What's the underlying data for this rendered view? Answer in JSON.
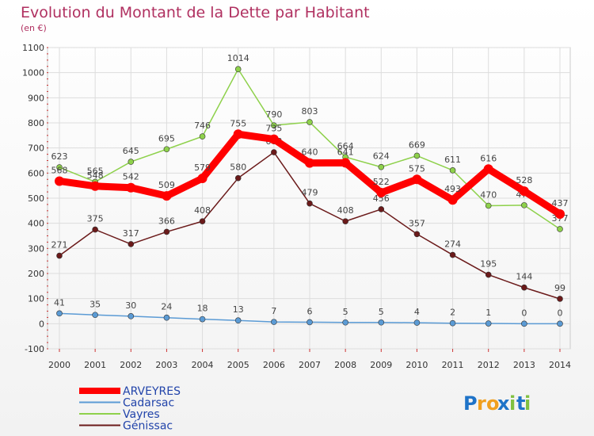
{
  "chart_data": {
    "type": "line",
    "title": "Evolution du Montant de la Dette par Habitant",
    "subtitle": "(en €)",
    "x": [
      "2000",
      "2001",
      "2002",
      "2003",
      "2004",
      "2005",
      "2006",
      "2007",
      "2008",
      "2009",
      "2010",
      "2011",
      "2012",
      "2013",
      "2014"
    ],
    "ylim": [
      -100,
      1100
    ],
    "yticks": [
      -100,
      0,
      100,
      200,
      300,
      400,
      500,
      600,
      700,
      800,
      900,
      1000,
      1100
    ],
    "grid": true,
    "legend": "bottom-left",
    "series": [
      {
        "name": "ARVEYRES",
        "color": "#ff0000",
        "values": [
          568,
          548,
          542,
          509,
          579,
          755,
          735,
          640,
          641,
          522,
          575,
          493,
          616,
          528,
          437
        ]
      },
      {
        "name": "Cadarsac",
        "color": "#5b9bd5",
        "values": [
          41,
          35,
          30,
          24,
          18,
          13,
          7,
          6,
          5,
          5,
          4,
          2,
          1,
          0,
          0
        ]
      },
      {
        "name": "Vayres",
        "color": "#8ed14b",
        "values": [
          623,
          565,
          645,
          695,
          746,
          1014,
          790,
          803,
          664,
          624,
          669,
          611,
          470,
          472,
          377
        ]
      },
      {
        "name": "Génissac",
        "color": "#6b1a1a",
        "values": [
          271,
          375,
          317,
          366,
          408,
          580,
          683,
          479,
          408,
          456,
          357,
          274,
          195,
          144,
          99
        ]
      }
    ]
  },
  "logo": {
    "text": "Proxiti"
  }
}
